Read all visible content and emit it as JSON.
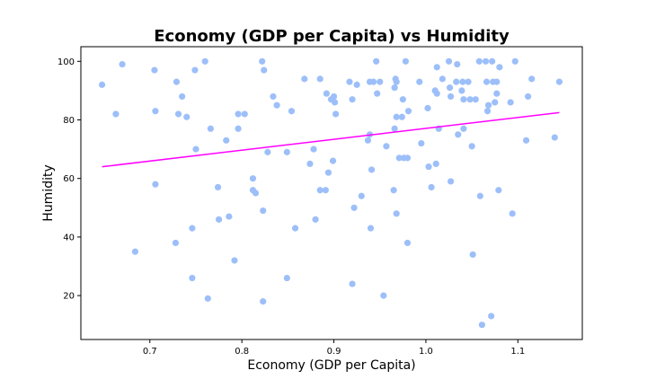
{
  "chart_data": {
    "type": "scatter",
    "title": "Economy (GDP per Capita) vs Humidity",
    "xlabel": "Economy (GDP per Capita)",
    "ylabel": "Humidity",
    "xlim": [
      0.625,
      1.17
    ],
    "ylim": [
      5,
      105
    ],
    "xticks": [
      0.7,
      0.8,
      0.9,
      1.0,
      1.1
    ],
    "xtick_labels": [
      "0.7",
      "0.8",
      "0.9",
      "1.0",
      "1.1"
    ],
    "yticks": [
      20,
      40,
      60,
      80,
      100
    ],
    "ytick_labels": [
      "20",
      "40",
      "60",
      "80",
      "100"
    ],
    "grid": false,
    "point_color": "#9dbff9",
    "line_color": "#ff00ff",
    "points": [
      [
        0.648,
        92
      ],
      [
        0.663,
        82
      ],
      [
        0.67,
        99
      ],
      [
        0.684,
        35
      ],
      [
        0.705,
        97
      ],
      [
        0.706,
        83
      ],
      [
        0.706,
        58
      ],
      [
        0.728,
        38
      ],
      [
        0.729,
        93
      ],
      [
        0.731,
        82
      ],
      [
        0.735,
        88
      ],
      [
        0.74,
        81
      ],
      [
        0.746,
        43
      ],
      [
        0.746,
        26
      ],
      [
        0.749,
        97
      ],
      [
        0.75,
        70
      ],
      [
        0.76,
        100
      ],
      [
        0.763,
        19
      ],
      [
        0.766,
        77
      ],
      [
        0.774,
        57
      ],
      [
        0.775,
        46
      ],
      [
        0.783,
        73
      ],
      [
        0.786,
        47
      ],
      [
        0.792,
        32
      ],
      [
        0.796,
        82
      ],
      [
        0.796,
        77
      ],
      [
        0.803,
        82
      ],
      [
        0.812,
        60
      ],
      [
        0.812,
        56
      ],
      [
        0.815,
        55
      ],
      [
        0.822,
        100
      ],
      [
        0.823,
        18
      ],
      [
        0.823,
        49
      ],
      [
        0.824,
        97
      ],
      [
        0.828,
        69
      ],
      [
        0.834,
        88
      ],
      [
        0.838,
        85
      ],
      [
        0.849,
        69
      ],
      [
        0.849,
        26
      ],
      [
        0.854,
        83
      ],
      [
        0.858,
        43
      ],
      [
        0.868,
        94
      ],
      [
        0.874,
        65
      ],
      [
        0.878,
        70
      ],
      [
        0.88,
        46
      ],
      [
        0.885,
        94
      ],
      [
        0.885,
        56
      ],
      [
        0.891,
        56
      ],
      [
        0.892,
        89
      ],
      [
        0.894,
        62
      ],
      [
        0.897,
        87
      ],
      [
        0.899,
        66
      ],
      [
        0.9,
        88
      ],
      [
        0.901,
        86
      ],
      [
        0.902,
        82
      ],
      [
        0.917,
        93
      ],
      [
        0.92,
        87
      ],
      [
        0.92,
        24
      ],
      [
        0.922,
        50
      ],
      [
        0.925,
        92
      ],
      [
        0.93,
        54
      ],
      [
        0.937,
        73
      ],
      [
        0.939,
        93
      ],
      [
        0.939,
        75
      ],
      [
        0.94,
        43
      ],
      [
        0.941,
        63
      ],
      [
        0.943,
        93
      ],
      [
        0.946,
        100
      ],
      [
        0.947,
        89
      ],
      [
        0.95,
        93
      ],
      [
        0.954,
        20
      ],
      [
        0.957,
        71
      ],
      [
        0.965,
        56
      ],
      [
        0.966,
        91
      ],
      [
        0.966,
        77
      ],
      [
        0.967,
        94
      ],
      [
        0.968,
        93
      ],
      [
        0.968,
        81
      ],
      [
        0.968,
        48
      ],
      [
        0.971,
        67
      ],
      [
        0.974,
        81
      ],
      [
        0.975,
        87
      ],
      [
        0.976,
        67
      ],
      [
        0.978,
        100
      ],
      [
        0.98,
        67
      ],
      [
        0.98,
        38
      ],
      [
        0.981,
        83
      ],
      [
        0.993,
        93
      ],
      [
        0.995,
        72
      ],
      [
        1.002,
        84
      ],
      [
        1.003,
        64
      ],
      [
        1.006,
        57
      ],
      [
        1.01,
        90
      ],
      [
        1.011,
        65
      ],
      [
        1.012,
        98
      ],
      [
        1.012,
        89
      ],
      [
        1.014,
        77
      ],
      [
        1.018,
        94
      ],
      [
        1.025,
        100
      ],
      [
        1.026,
        91
      ],
      [
        1.027,
        88
      ],
      [
        1.027,
        59
      ],
      [
        1.033,
        93
      ],
      [
        1.034,
        99
      ],
      [
        1.035,
        75
      ],
      [
        1.039,
        90
      ],
      [
        1.04,
        93
      ],
      [
        1.041,
        87
      ],
      [
        1.041,
        77
      ],
      [
        1.046,
        93
      ],
      [
        1.048,
        87
      ],
      [
        1.05,
        71
      ],
      [
        1.051,
        34
      ],
      [
        1.054,
        87
      ],
      [
        1.058,
        100
      ],
      [
        1.059,
        54
      ],
      [
        1.061,
        10
      ],
      [
        1.065,
        100
      ],
      [
        1.066,
        93
      ],
      [
        1.067,
        83
      ],
      [
        1.068,
        85
      ],
      [
        1.071,
        13
      ],
      [
        1.072,
        100
      ],
      [
        1.073,
        93
      ],
      [
        1.075,
        86
      ],
      [
        1.077,
        93
      ],
      [
        1.077,
        89
      ],
      [
        1.079,
        56
      ],
      [
        1.08,
        98
      ],
      [
        1.092,
        86
      ],
      [
        1.094,
        48
      ],
      [
        1.097,
        100
      ],
      [
        1.109,
        73
      ],
      [
        1.111,
        88
      ],
      [
        1.115,
        94
      ],
      [
        1.14,
        74
      ],
      [
        1.145,
        93
      ]
    ],
    "trendline": {
      "x": [
        0.648,
        1.145
      ],
      "y": [
        64,
        82.5
      ]
    }
  }
}
